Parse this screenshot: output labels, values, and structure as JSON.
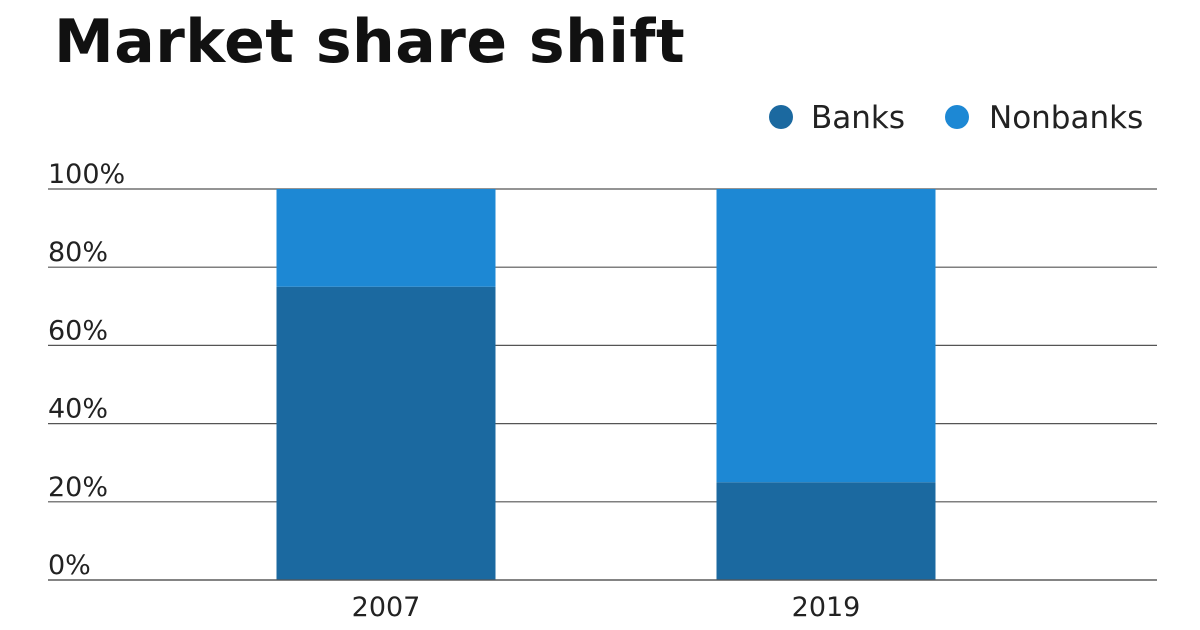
{
  "title": "Market share shift",
  "colors": {
    "banks": "#1b69a0",
    "nonbanks": "#1d88d4",
    "gridline": "#555555",
    "text": "#222222"
  },
  "chart_data": {
    "type": "bar",
    "stacked": true,
    "title": "Market share shift",
    "categories": [
      "2007",
      "2019"
    ],
    "series": [
      {
        "name": "Banks",
        "values": [
          75,
          25
        ],
        "color": "#1b69a0"
      },
      {
        "name": "Nonbanks",
        "values": [
          25,
          75
        ],
        "color": "#1d88d4"
      }
    ],
    "ylim": [
      0,
      100
    ],
    "yticks": [
      0,
      20,
      40,
      60,
      80,
      100
    ],
    "ytick_labels": [
      "0%",
      "20%",
      "40%",
      "60%",
      "80%",
      "100%"
    ],
    "grid": true,
    "legend_position": "top-right"
  }
}
